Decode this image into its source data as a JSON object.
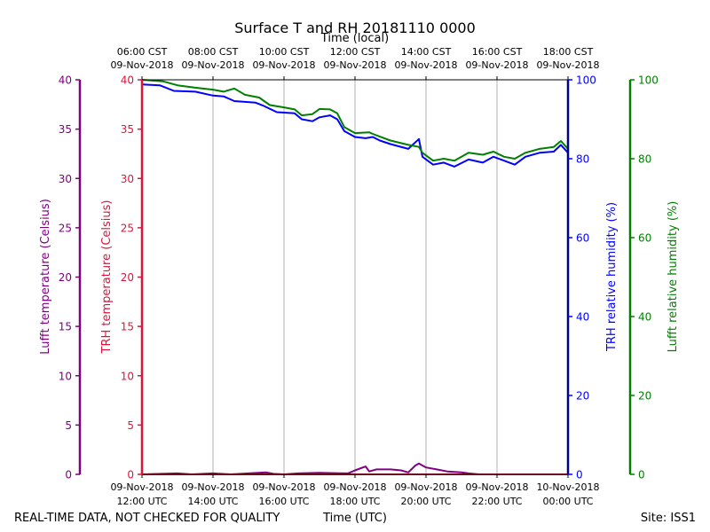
{
  "title": "Surface T and RH 20181110 0000",
  "footer": {
    "left": "REAL-TIME DATA, NOT CHECKED FOR QUALITY",
    "center": "Time (UTC)",
    "right": "Site: ISS1"
  },
  "colors": {
    "lufft_temp": "#800080",
    "trh_temp": "#dc143c",
    "trh_rh": "#0000ff",
    "lufft_rh": "#008000",
    "trh_rh_axis": "#00008b",
    "grid": "#b0b0b0"
  },
  "chart_data": {
    "type": "line",
    "title": "Surface T and RH 20181110 0000",
    "x_top_label": "Time (local)",
    "x_bottom_label": "Time (UTC)",
    "x_range_hours": [
      12,
      24
    ],
    "x_ticks": [
      {
        "hour": 12,
        "utc_date": "09-Nov-2018",
        "utc_time": "12:00 UTC",
        "local_time": "06:00 CST",
        "local_date": "09-Nov-2018"
      },
      {
        "hour": 14,
        "utc_date": "09-Nov-2018",
        "utc_time": "14:00 UTC",
        "local_time": "08:00 CST",
        "local_date": "09-Nov-2018"
      },
      {
        "hour": 16,
        "utc_date": "09-Nov-2018",
        "utc_time": "16:00 UTC",
        "local_time": "10:00 CST",
        "local_date": "09-Nov-2018"
      },
      {
        "hour": 18,
        "utc_date": "09-Nov-2018",
        "utc_time": "18:00 UTC",
        "local_time": "12:00 CST",
        "local_date": "09-Nov-2018"
      },
      {
        "hour": 20,
        "utc_date": "09-Nov-2018",
        "utc_time": "20:00 UTC",
        "local_time": "14:00 CST",
        "local_date": "09-Nov-2018"
      },
      {
        "hour": 22,
        "utc_date": "09-Nov-2018",
        "utc_time": "22:00 UTC",
        "local_time": "16:00 CST",
        "local_date": "09-Nov-2018"
      },
      {
        "hour": 24,
        "utc_date": "10-Nov-2018",
        "utc_time": "00:00 UTC",
        "local_time": "18:00 CST",
        "local_date": "09-Nov-2018"
      }
    ],
    "axes": {
      "lufft_temp": {
        "label": "Lufft temperature (Celsius)",
        "range": [
          0,
          40
        ],
        "ticks": [
          0,
          5,
          10,
          15,
          20,
          25,
          30,
          35,
          40
        ]
      },
      "trh_temp": {
        "label": "TRH temperature (Celsius)",
        "range": [
          0,
          40
        ],
        "ticks": [
          0,
          5,
          10,
          15,
          20,
          25,
          30,
          35,
          40
        ]
      },
      "trh_rh": {
        "label": "TRH relative humidity (%)",
        "range": [
          0,
          100
        ],
        "ticks": [
          0,
          20,
          40,
          60,
          80,
          100
        ]
      },
      "lufft_rh": {
        "label": "Lufft relative humidity (%)",
        "range": [
          0,
          100
        ],
        "ticks": [
          0,
          20,
          40,
          60,
          80,
          100
        ]
      }
    },
    "series": [
      {
        "name": "Lufft temperature",
        "axis": "lufft_temp",
        "color": "#800080",
        "points": [
          [
            12,
            0
          ],
          [
            13,
            0.1
          ],
          [
            13.4,
            0
          ],
          [
            14,
            0.1
          ],
          [
            14.5,
            0
          ],
          [
            15,
            0.1
          ],
          [
            15.5,
            0.2
          ],
          [
            15.7,
            0.05
          ],
          [
            16,
            0
          ],
          [
            16.4,
            0.1
          ],
          [
            17,
            0.15
          ],
          [
            17.8,
            0.1
          ],
          [
            18,
            0.4
          ],
          [
            18.3,
            0.8
          ],
          [
            18.4,
            0.3
          ],
          [
            18.6,
            0.5
          ],
          [
            19,
            0.5
          ],
          [
            19.3,
            0.4
          ],
          [
            19.5,
            0.2
          ],
          [
            19.7,
            0.9
          ],
          [
            19.8,
            1.1
          ],
          [
            20,
            0.7
          ],
          [
            20.3,
            0.5
          ],
          [
            20.6,
            0.3
          ],
          [
            21,
            0.2
          ],
          [
            21.2,
            0.1
          ],
          [
            21.5,
            0
          ]
        ]
      },
      {
        "name": "TRH temperature",
        "axis": "trh_temp",
        "color": "#dc143c",
        "points": [
          [
            12,
            0
          ],
          [
            24,
            0
          ]
        ]
      },
      {
        "name": "TRH relative humidity",
        "axis": "trh_rh",
        "color": "#0000ff",
        "points": [
          [
            12,
            98.8
          ],
          [
            12.5,
            98.6
          ],
          [
            12.9,
            97.2
          ],
          [
            13.5,
            97.0
          ],
          [
            14,
            96
          ],
          [
            14.3,
            95.8
          ],
          [
            14.6,
            94.6
          ],
          [
            15.2,
            94.2
          ],
          [
            15.4,
            93.5
          ],
          [
            15.8,
            91.8
          ],
          [
            16.3,
            91.5
          ],
          [
            16.5,
            90.0
          ],
          [
            16.8,
            89.5
          ],
          [
            17,
            90.5
          ],
          [
            17.3,
            91.0
          ],
          [
            17.5,
            90.0
          ],
          [
            17.7,
            87.0
          ],
          [
            18,
            85.5
          ],
          [
            18.3,
            85.2
          ],
          [
            18.5,
            85.5
          ],
          [
            18.7,
            84.6
          ],
          [
            19,
            83.7
          ],
          [
            19.5,
            82.5
          ],
          [
            19.8,
            85.0
          ],
          [
            19.9,
            80.5
          ],
          [
            20.2,
            78.5
          ],
          [
            20.5,
            79.0
          ],
          [
            20.8,
            78.0
          ],
          [
            21.2,
            79.8
          ],
          [
            21.6,
            79.0
          ],
          [
            21.9,
            80.5
          ],
          [
            22.2,
            79.5
          ],
          [
            22.5,
            78.5
          ],
          [
            22.8,
            80.5
          ],
          [
            23.2,
            81.5
          ],
          [
            23.6,
            81.8
          ],
          [
            23.8,
            83.5
          ],
          [
            24,
            81.5
          ]
        ]
      },
      {
        "name": "Lufft relative humidity",
        "axis": "lufft_rh",
        "color": "#008000",
        "points": [
          [
            12,
            100
          ],
          [
            12.6,
            99.6
          ],
          [
            13.0,
            98.6
          ],
          [
            13.5,
            98.0
          ],
          [
            14,
            97.5
          ],
          [
            14.3,
            97.0
          ],
          [
            14.6,
            97.8
          ],
          [
            14.9,
            96.2
          ],
          [
            15.3,
            95.5
          ],
          [
            15.6,
            93.6
          ],
          [
            16,
            93.0
          ],
          [
            16.3,
            92.5
          ],
          [
            16.5,
            91.0
          ],
          [
            16.8,
            91.3
          ],
          [
            17,
            92.6
          ],
          [
            17.3,
            92.5
          ],
          [
            17.5,
            91.5
          ],
          [
            17.7,
            88.0
          ],
          [
            18,
            86.5
          ],
          [
            18.4,
            86.7
          ],
          [
            18.5,
            86.3
          ],
          [
            18.7,
            85.6
          ],
          [
            19,
            84.6
          ],
          [
            19.5,
            83.5
          ],
          [
            19.8,
            83.0
          ],
          [
            19.9,
            81.5
          ],
          [
            20.2,
            79.5
          ],
          [
            20.5,
            80.0
          ],
          [
            20.8,
            79.5
          ],
          [
            21.2,
            81.5
          ],
          [
            21.6,
            81.0
          ],
          [
            21.9,
            81.8
          ],
          [
            22.2,
            80.5
          ],
          [
            22.5,
            80.0
          ],
          [
            22.8,
            81.5
          ],
          [
            23.2,
            82.5
          ],
          [
            23.6,
            83.0
          ],
          [
            23.8,
            84.5
          ],
          [
            24,
            82.5
          ]
        ]
      }
    ]
  }
}
